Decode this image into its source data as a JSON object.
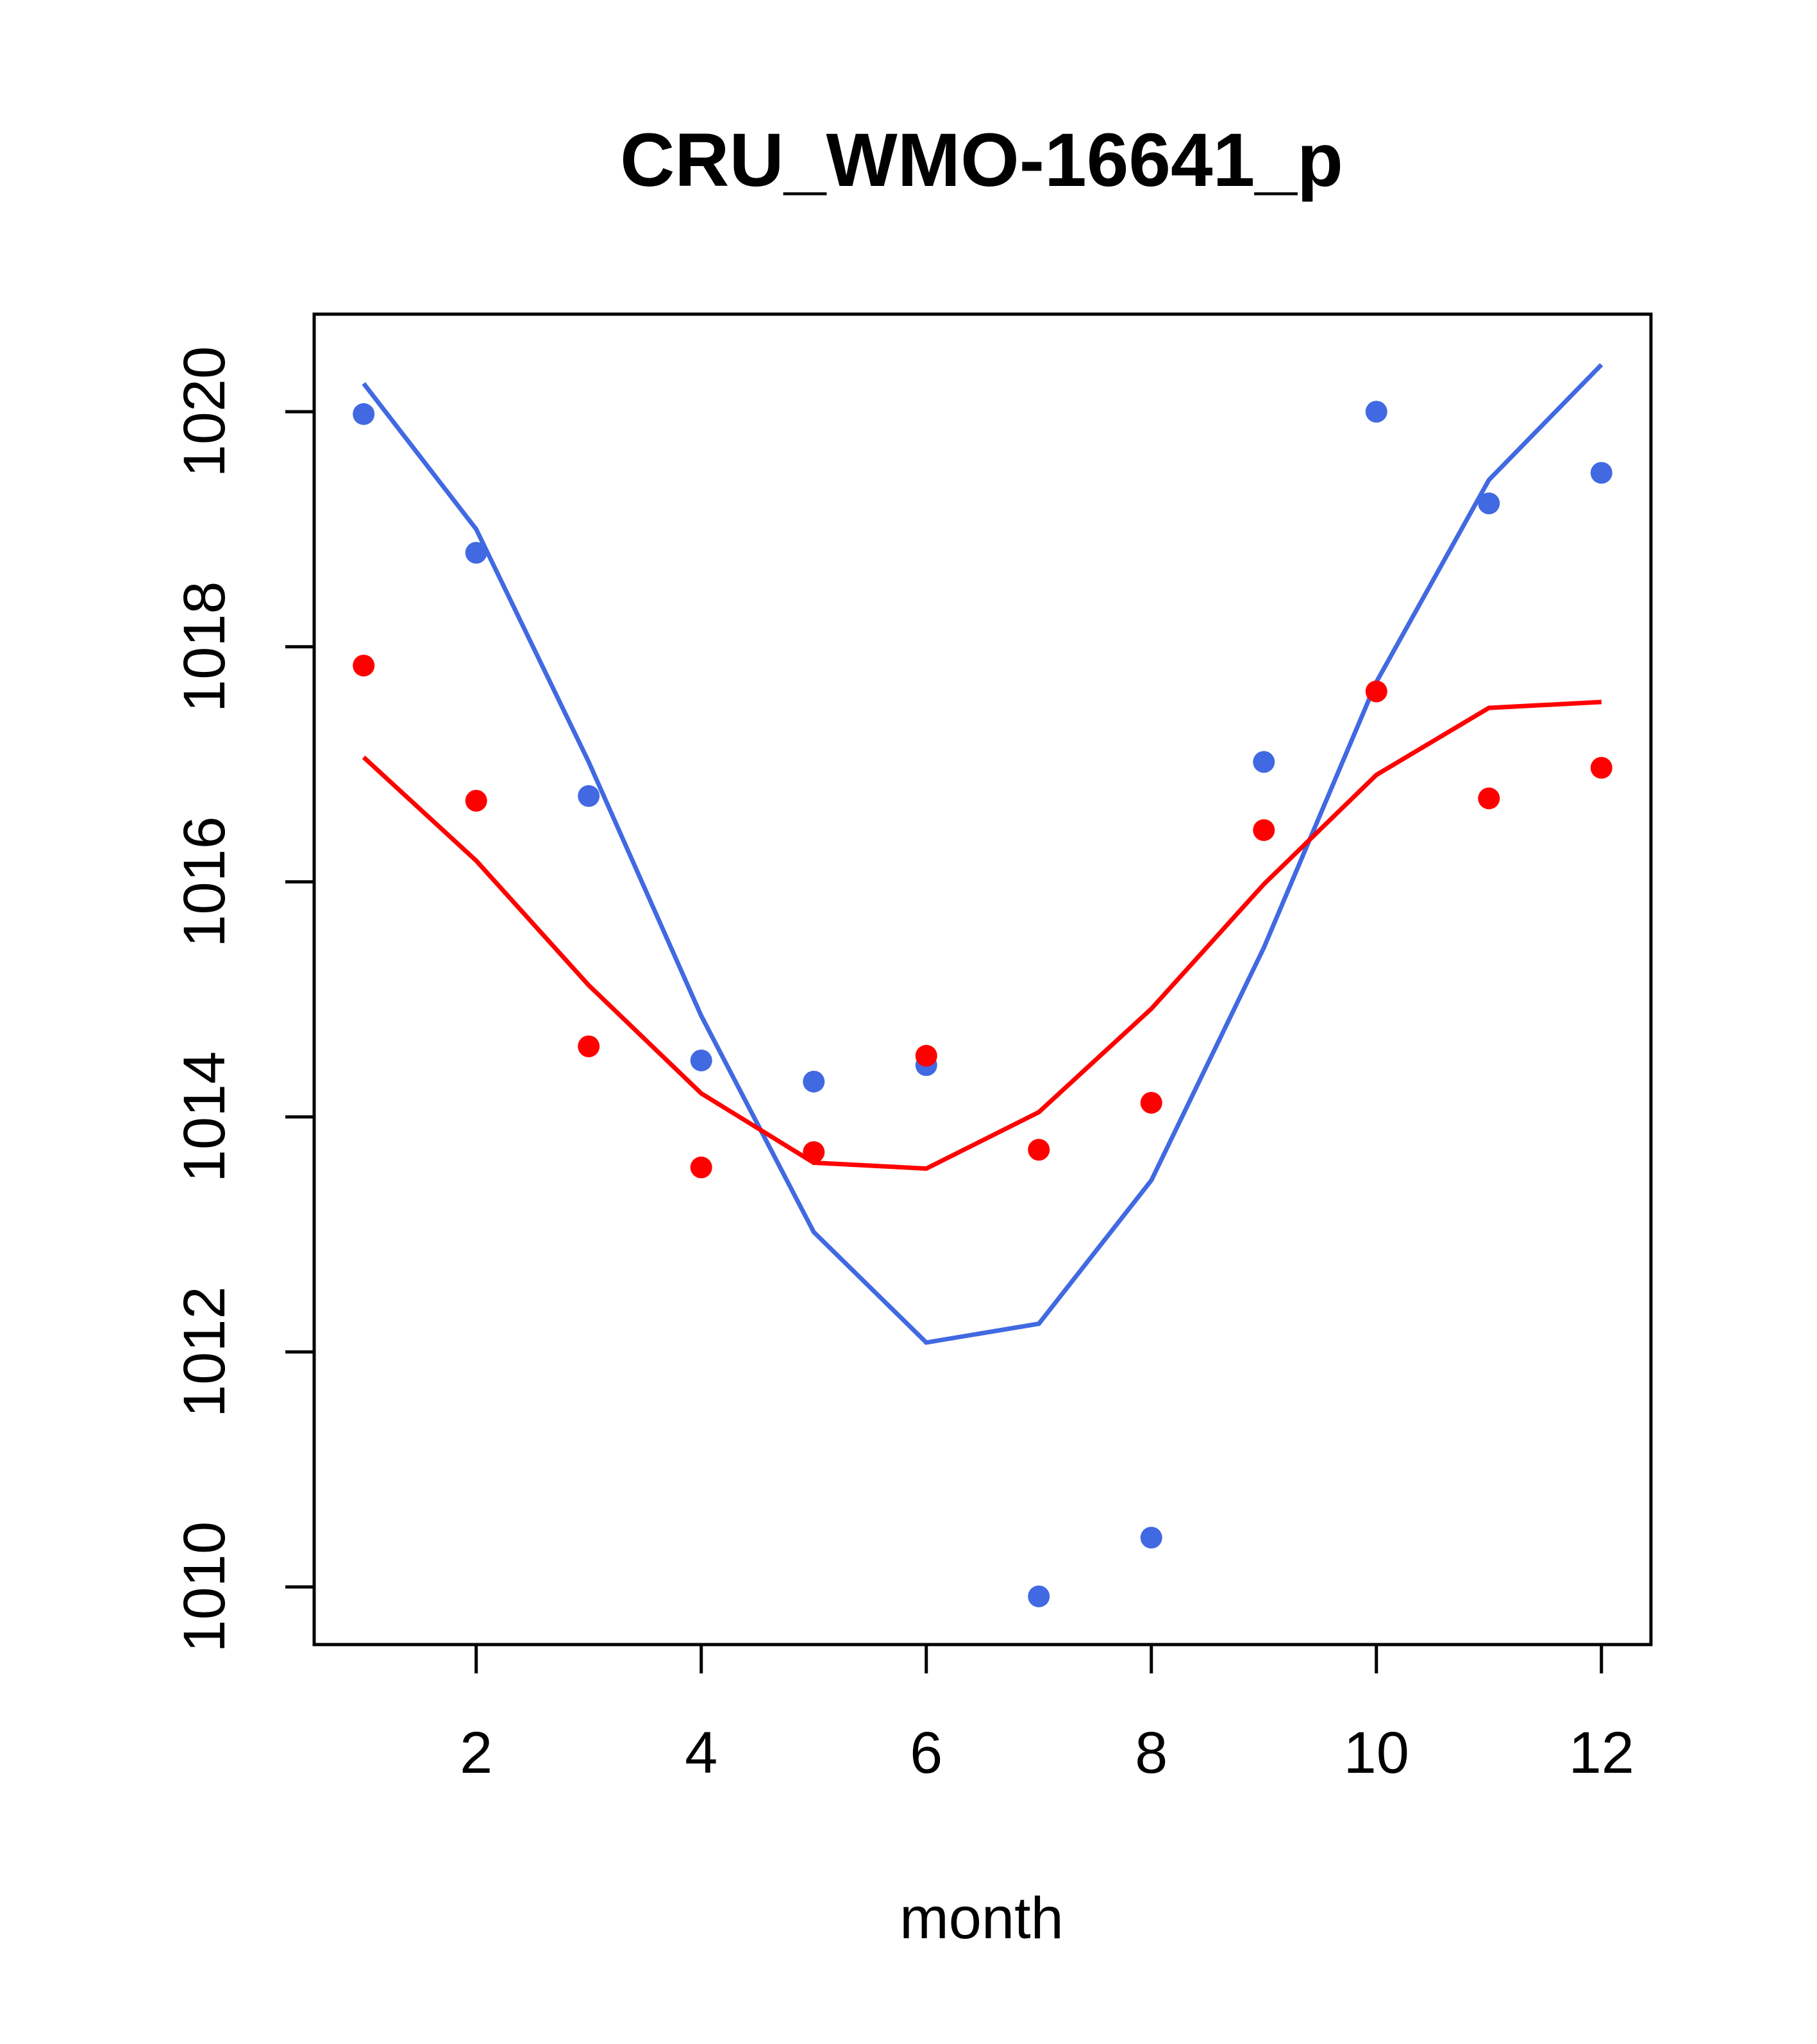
{
  "chart_data": {
    "type": "line",
    "title": "CRU_WMO-16641_p",
    "xlabel": "month",
    "ylabel": "",
    "xlim": [
      0.56,
      12.44
    ],
    "ylim": [
      1009.51,
      1020.83
    ],
    "xticks": [
      2,
      4,
      6,
      8,
      10,
      12
    ],
    "yticks": [
      1010,
      1012,
      1014,
      1016,
      1018,
      1020
    ],
    "grid": false,
    "legend": "none",
    "series": [
      {
        "name": "blue",
        "color": "#4169E1",
        "x": [
          1,
          2,
          3,
          4,
          5,
          6,
          7,
          8,
          9,
          10,
          11,
          12
        ],
        "points": [
          1019.98,
          1018.8,
          1016.73,
          1014.48,
          1014.3,
          1014.44,
          1009.92,
          1010.42,
          1017.02,
          1020.0,
          1019.22,
          1019.48
        ],
        "line": [
          1020.24,
          1019.0,
          1017.02,
          1014.86,
          1013.02,
          1012.08,
          1012.24,
          1013.46,
          1015.44,
          1017.7,
          1019.42,
          1020.4
        ]
      },
      {
        "name": "red",
        "color": "#FF0000",
        "x": [
          1,
          2,
          3,
          4,
          5,
          6,
          7,
          8,
          9,
          10,
          11,
          12
        ],
        "points": [
          1017.84,
          1016.69,
          1014.6,
          1013.57,
          1013.7,
          1014.52,
          1013.72,
          1014.12,
          1016.44,
          1017.62,
          1016.71,
          1016.97
        ],
        "line": [
          1017.06,
          1016.18,
          1015.12,
          1014.2,
          1013.61,
          1013.56,
          1014.04,
          1014.92,
          1015.98,
          1016.91,
          1017.48,
          1017.53
        ]
      }
    ]
  }
}
